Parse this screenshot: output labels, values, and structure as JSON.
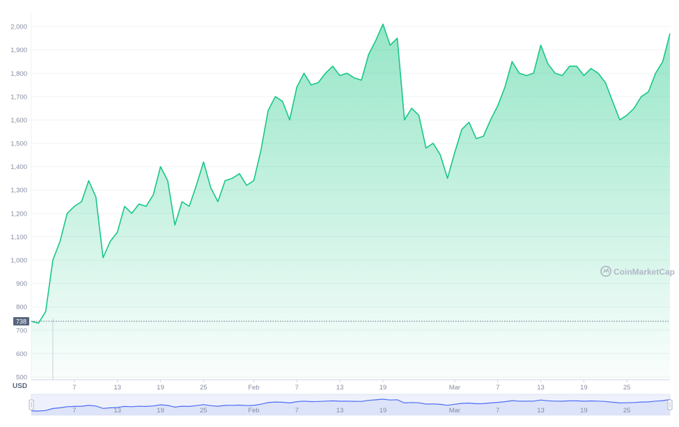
{
  "chart_data": {
    "type": "area",
    "currency_label": "USD",
    "watermark": "CoinMarketCap",
    "current_price_label": "738",
    "reference_price": 738,
    "colors": {
      "line": "#16c784",
      "fill_top": "#16c784",
      "grid": "#eff2f5",
      "axis_text": "#858ca2",
      "reference_line": "#58667e",
      "price_badge": "#58667e",
      "navigator_fill": "#dde3f8",
      "navigator_line": "#4a6cf7",
      "watermark": "#b0b7c6"
    },
    "y_axis": {
      "ticks": [
        500,
        600,
        700,
        800,
        900,
        1000,
        1100,
        1200,
        1300,
        1400,
        1500,
        1600,
        1700,
        1800,
        1900,
        2000
      ],
      "tick_labels": [
        "500",
        "600",
        "700",
        "800",
        "900",
        "1,000",
        "1,100",
        "1,200",
        "1,300",
        "1,400",
        "1,500",
        "1,600",
        "1,700",
        "1,800",
        "1,900",
        "2,000"
      ],
      "range": [
        488,
        2030
      ]
    },
    "x_axis": {
      "range": [
        "2021-01-01",
        "2021-03-31"
      ],
      "ticks": [
        {
          "date": "2021-01-07",
          "label": "7"
        },
        {
          "date": "2021-01-13",
          "label": "13"
        },
        {
          "date": "2021-01-19",
          "label": "19"
        },
        {
          "date": "2021-01-25",
          "label": "25"
        },
        {
          "date": "2021-02-01",
          "label": "Feb"
        },
        {
          "date": "2021-02-07",
          "label": "7"
        },
        {
          "date": "2021-02-13",
          "label": "13"
        },
        {
          "date": "2021-02-19",
          "label": "19"
        },
        {
          "date": "2021-03-01",
          "label": "Mar"
        },
        {
          "date": "2021-03-07",
          "label": "7"
        },
        {
          "date": "2021-03-13",
          "label": "13"
        },
        {
          "date": "2021-03-19",
          "label": "19"
        },
        {
          "date": "2021-03-25",
          "label": "25"
        }
      ]
    },
    "series": [
      {
        "x": [
          "2021-01-01",
          "2021-01-02",
          "2021-01-03",
          "2021-01-04",
          "2021-01-05",
          "2021-01-06",
          "2021-01-07",
          "2021-01-08",
          "2021-01-09",
          "2021-01-10",
          "2021-01-11",
          "2021-01-12",
          "2021-01-13",
          "2021-01-14",
          "2021-01-15",
          "2021-01-16",
          "2021-01-17",
          "2021-01-18",
          "2021-01-19",
          "2021-01-20",
          "2021-01-21",
          "2021-01-22",
          "2021-01-23",
          "2021-01-24",
          "2021-01-25",
          "2021-01-26",
          "2021-01-27",
          "2021-01-28",
          "2021-01-29",
          "2021-01-30",
          "2021-01-31",
          "2021-02-01",
          "2021-02-02",
          "2021-02-03",
          "2021-02-04",
          "2021-02-05",
          "2021-02-06",
          "2021-02-07",
          "2021-02-08",
          "2021-02-09",
          "2021-02-10",
          "2021-02-11",
          "2021-02-12",
          "2021-02-13",
          "2021-02-14",
          "2021-02-15",
          "2021-02-16",
          "2021-02-17",
          "2021-02-18",
          "2021-02-19",
          "2021-02-20",
          "2021-02-21",
          "2021-02-22",
          "2021-02-23",
          "2021-02-24",
          "2021-02-25",
          "2021-02-26",
          "2021-02-27",
          "2021-02-28",
          "2021-03-01",
          "2021-03-02",
          "2021-03-03",
          "2021-03-04",
          "2021-03-05",
          "2021-03-06",
          "2021-03-07",
          "2021-03-08",
          "2021-03-09",
          "2021-03-10",
          "2021-03-11",
          "2021-03-12",
          "2021-03-13",
          "2021-03-14",
          "2021-03-15",
          "2021-03-16",
          "2021-03-17",
          "2021-03-18",
          "2021-03-19",
          "2021-03-20",
          "2021-03-21",
          "2021-03-22",
          "2021-03-23",
          "2021-03-24",
          "2021-03-25",
          "2021-03-26",
          "2021-03-27",
          "2021-03-28",
          "2021-03-29",
          "2021-03-30",
          "2021-03-31"
        ],
        "values": [
          738,
          730,
          780,
          1000,
          1080,
          1200,
          1230,
          1250,
          1340,
          1270,
          1010,
          1080,
          1120,
          1230,
          1200,
          1240,
          1230,
          1280,
          1400,
          1340,
          1150,
          1250,
          1230,
          1320,
          1420,
          1310,
          1250,
          1340,
          1350,
          1370,
          1320,
          1340,
          1470,
          1640,
          1700,
          1680,
          1600,
          1740,
          1800,
          1750,
          1760,
          1800,
          1830,
          1790,
          1800,
          1780,
          1770,
          1880,
          1940,
          2010,
          1920,
          1950,
          1600,
          1650,
          1620,
          1480,
          1500,
          1450,
          1350,
          1460,
          1560,
          1590,
          1520,
          1530,
          1600,
          1660,
          1740,
          1850,
          1800,
          1790,
          1800,
          1920,
          1840,
          1800,
          1790,
          1830,
          1830,
          1790,
          1820,
          1800,
          1760,
          1680,
          1600,
          1620,
          1650,
          1700,
          1720,
          1800,
          1850,
          1970
        ]
      }
    ],
    "volume_marker": {
      "date": "2021-01-04",
      "value": 750
    },
    "navigator": {
      "values": [
        738,
        730,
        780,
        1000,
        1080,
        1200,
        1230,
        1250,
        1340,
        1270,
        1010,
        1080,
        1120,
        1230,
        1200,
        1240,
        1230,
        1280,
        1400,
        1340,
        1150,
        1250,
        1230,
        1320,
        1420,
        1310,
        1250,
        1340,
        1350,
        1370,
        1320,
        1340,
        1470,
        1640,
        1700,
        1680,
        1600,
        1740,
        1800,
        1750,
        1760,
        1800,
        1830,
        1790,
        1800,
        1780,
        1770,
        1880,
        1940,
        2010,
        1920,
        1950,
        1600,
        1650,
        1620,
        1480,
        1500,
        1450,
        1350,
        1460,
        1560,
        1590,
        1520,
        1530,
        1600,
        1660,
        1740,
        1850,
        1800,
        1790,
        1800,
        1920,
        1840,
        1800,
        1790,
        1830,
        1830,
        1790,
        1820,
        1800,
        1760,
        1680,
        1600,
        1620,
        1650,
        1700,
        1720,
        1800,
        1850,
        1970
      ]
    }
  }
}
